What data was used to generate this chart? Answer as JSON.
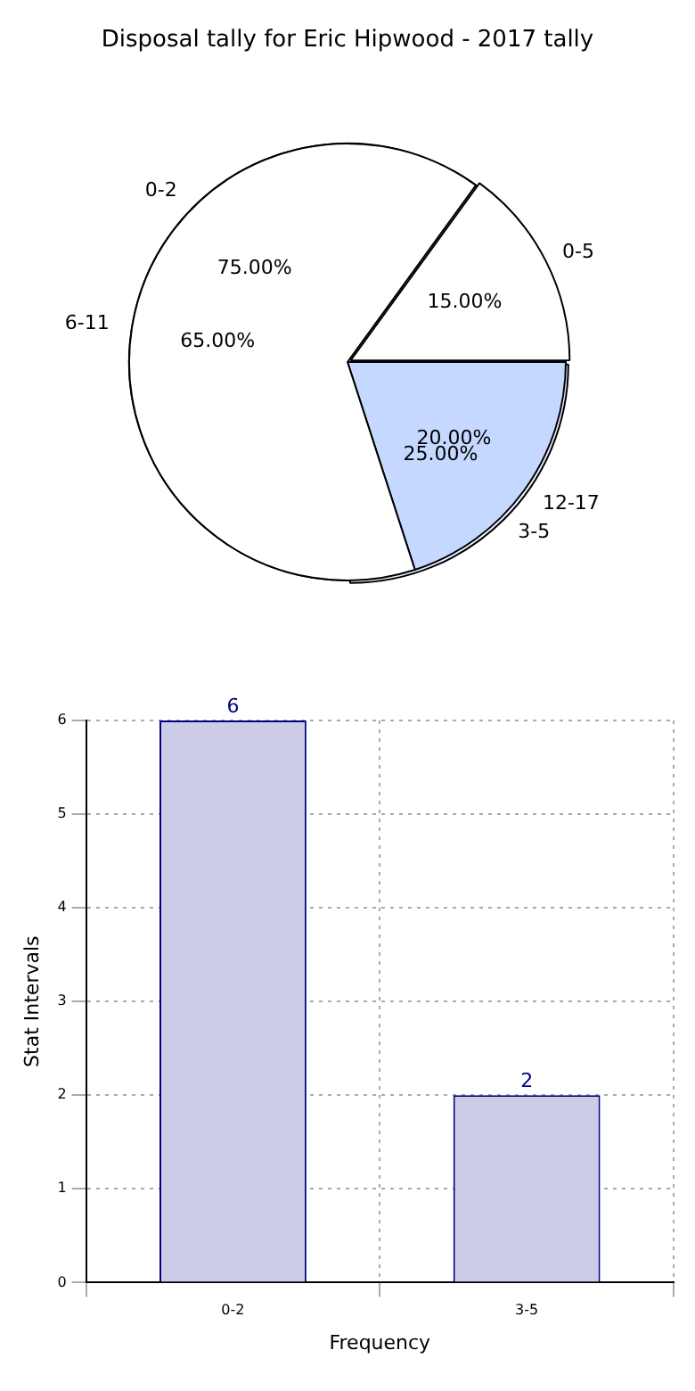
{
  "chart_data": [
    {
      "type": "pie",
      "title": "Disposal tally for Eric Hipwood - 2017 tally",
      "categories": [
        "0-2",
        "3-5"
      ],
      "values": [
        75,
        25
      ],
      "colors": [
        "#ffffff",
        "#eaf0ff"
      ],
      "value_labels": [
        "75.00%",
        "25.00%"
      ]
    },
    {
      "type": "pie",
      "categories": [
        "0-5",
        "6-11",
        "12-17"
      ],
      "values": [
        15,
        65,
        20
      ],
      "colors": [
        "#ffffff",
        "#ffffff",
        "#c5d8ff"
      ],
      "value_labels": [
        "15.00%",
        "65.00%",
        "20.00%"
      ]
    },
    {
      "type": "bar",
      "categories": [
        "0-2",
        "3-5"
      ],
      "values": [
        6,
        2
      ],
      "color": "#cccce6",
      "xlabel": "Frequency",
      "ylabel": "Stat Intervals",
      "ylim": [
        0,
        6
      ],
      "yticks": [
        0,
        1,
        2,
        3,
        4,
        5,
        6
      ],
      "grid": true,
      "data_labels": true
    }
  ]
}
